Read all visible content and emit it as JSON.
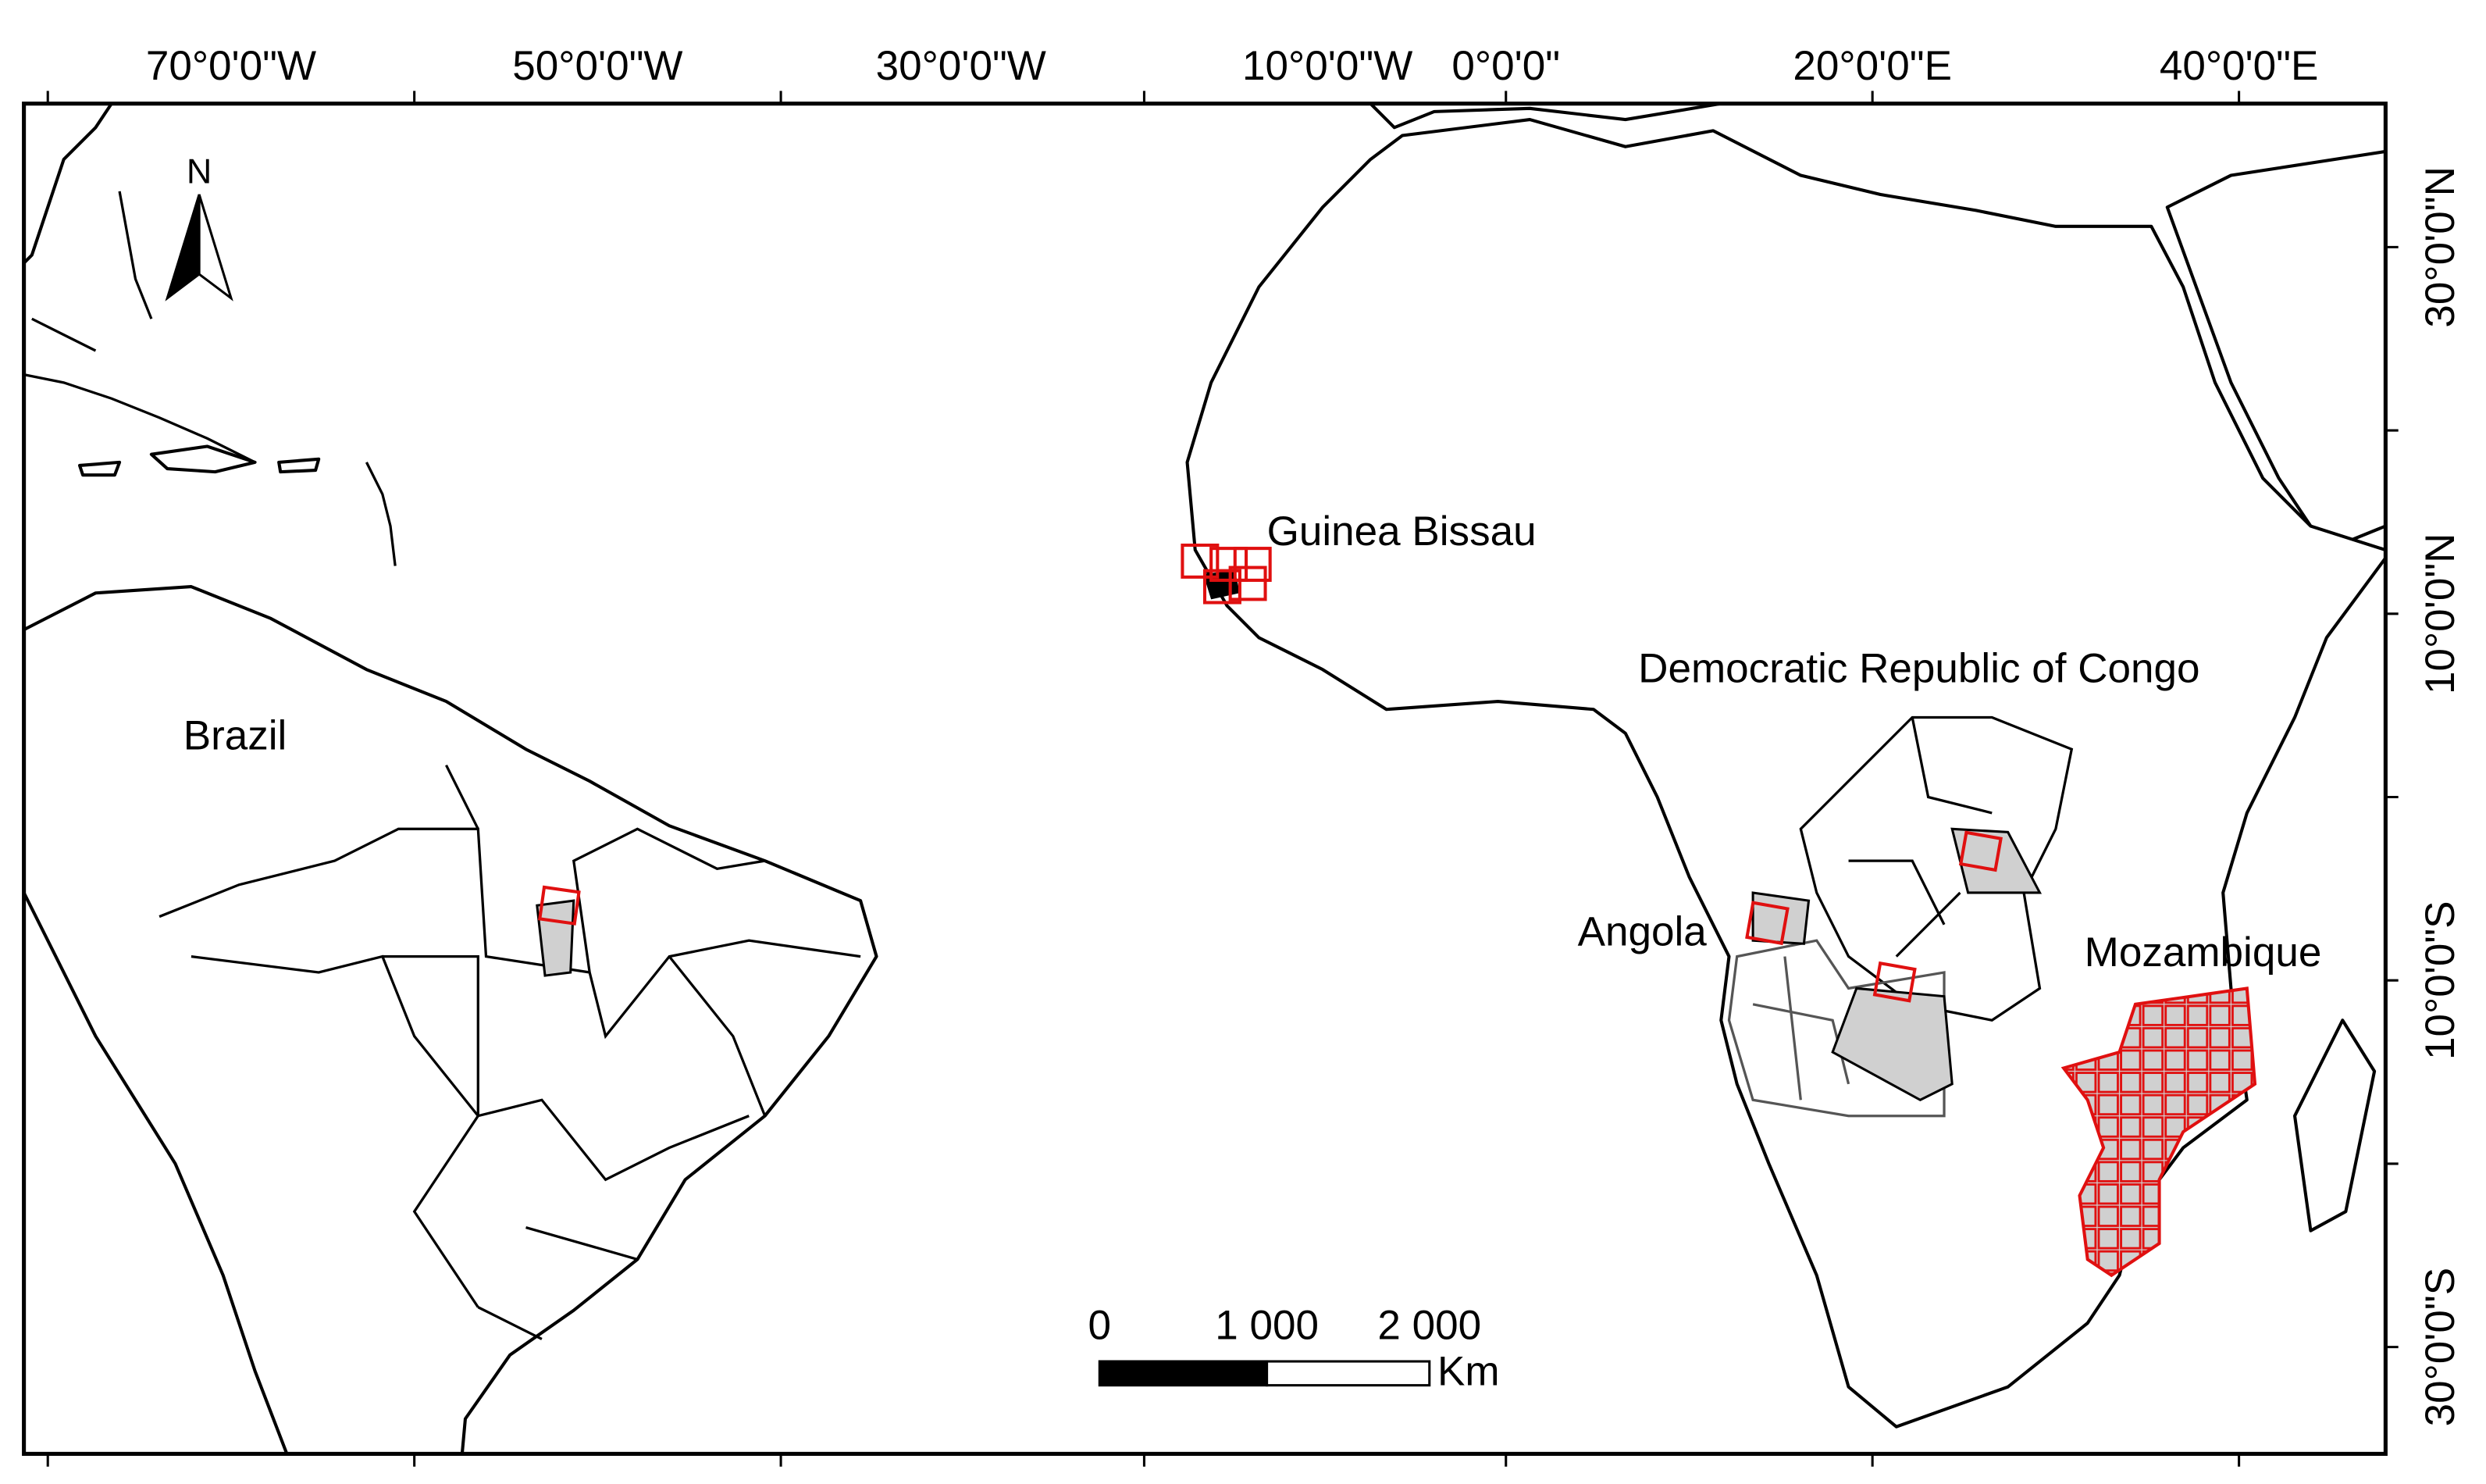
{
  "map": {
    "longitude_labels": [
      "70°0'0\"W",
      "50°0'0\"W",
      "30°0'0\"W",
      "10°0'0\"W",
      "0°0'0\"",
      "20°0'0\"E",
      "40°0'0\"E"
    ],
    "latitude_labels": [
      "30°0'0\"N",
      "10°0'0\"N",
      "10°0'0\"S",
      "30°0'0\"S"
    ],
    "places": [
      "Guinea Bissau",
      "Democratic Republic of Congo",
      "Angola",
      "Mozambique",
      "Brazil"
    ],
    "scale_bar": {
      "labels": [
        "0",
        "1 000",
        "2 000"
      ],
      "unit": "Km"
    },
    "north_label": "N"
  }
}
